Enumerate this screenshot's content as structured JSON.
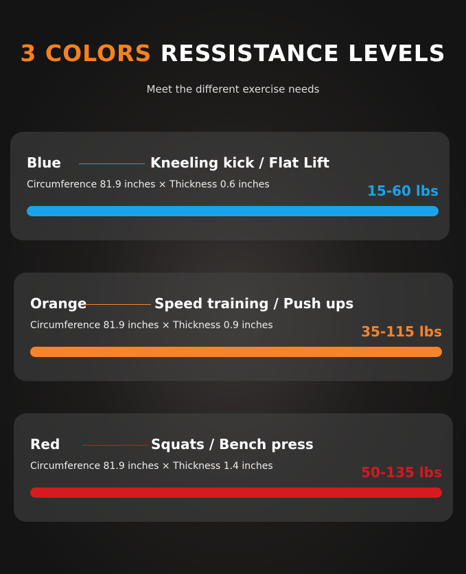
{
  "title": {
    "accent": "3 COLORS",
    "rest": "RESSISTANCE LEVELS"
  },
  "subtitle": "Meet the different exercise needs",
  "bands": [
    {
      "name": "Blue",
      "use": "Kneeling kick / Flat Lift",
      "spec": "Circumference 81.9 inches × Thickness 0.6 inches",
      "range": "15-60  lbs",
      "color": "#1aa3e8"
    },
    {
      "name": "Orange",
      "use": "Speed training / Push ups",
      "spec": "Circumference 81.9 inches × Thickness 0.9 inches",
      "range": "35-115 lbs",
      "color": "#f5852a"
    },
    {
      "name": "Red",
      "use": "Squats / Bench press",
      "spec": "Circumference 81.9 inches × Thickness 1.4 inches",
      "range": "50-135 lbs",
      "color": "#d71920"
    }
  ]
}
